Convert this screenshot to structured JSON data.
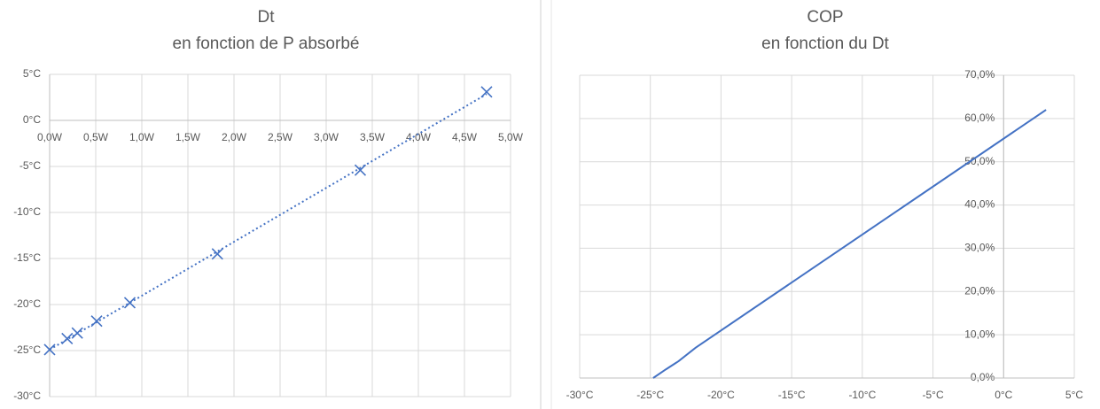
{
  "chart_data": [
    {
      "type": "scatter",
      "title": "Dt",
      "subtitle": "en fonction de P absorbé",
      "x": [
        0,
        0.19,
        0.3,
        0.51,
        0.87,
        1.82,
        3.37,
        4.74
      ],
      "values": [
        -24.9,
        -23.7,
        -23.1,
        -21.8,
        -19.8,
        -14.5,
        -5.4,
        3.1
      ],
      "color": "#4472c4",
      "marker": "x",
      "trendline": "linear",
      "xlim": [
        0,
        5
      ],
      "ylim": [
        -30,
        5
      ],
      "xticks": [
        {
          "value": 0,
          "label": "0,0W"
        },
        {
          "value": 0.5,
          "label": "0,5W"
        },
        {
          "value": 1,
          "label": "1,0W"
        },
        {
          "value": 1.5,
          "label": "1,5W"
        },
        {
          "value": 2,
          "label": "2,0W"
        },
        {
          "value": 2.5,
          "label": "2,5W"
        },
        {
          "value": 3,
          "label": "3,0W"
        },
        {
          "value": 3.5,
          "label": "3,5W"
        },
        {
          "value": 4,
          "label": "4,0W"
        },
        {
          "value": 4.5,
          "label": "4,5W"
        },
        {
          "value": 5,
          "label": "5,0W"
        }
      ],
      "yticks": [
        {
          "value": -30,
          "label": "-30°C"
        },
        {
          "value": -25,
          "label": "-25°C"
        },
        {
          "value": -20,
          "label": "-20°C"
        },
        {
          "value": -15,
          "label": "-15°C"
        },
        {
          "value": -10,
          "label": "-10°C"
        },
        {
          "value": -5,
          "label": "-5°C"
        },
        {
          "value": 0,
          "label": "0°C"
        },
        {
          "value": 5,
          "label": "5°C"
        }
      ],
      "grid": true,
      "x_axis_at": 0
    },
    {
      "type": "line",
      "title": "COP",
      "subtitle": "en fonction du Dt",
      "x": [
        -24.8,
        -23.9,
        -23,
        -21.8,
        3
      ],
      "values": [
        0,
        2,
        3.9,
        7,
        62
      ],
      "color": "#4472c4",
      "xlim": [
        -30,
        5
      ],
      "ylim": [
        0,
        70
      ],
      "xticks": [
        {
          "value": -30,
          "label": "-30°C"
        },
        {
          "value": -25,
          "label": "-25°C"
        },
        {
          "value": -20,
          "label": "-20°C"
        },
        {
          "value": -15,
          "label": "-15°C"
        },
        {
          "value": -10,
          "label": "-10°C"
        },
        {
          "value": -5,
          "label": "-5°C"
        },
        {
          "value": 0,
          "label": "0°C"
        },
        {
          "value": 5,
          "label": "5°C"
        }
      ],
      "yticks": [
        {
          "value": 0,
          "label": "0,0%"
        },
        {
          "value": 10,
          "label": "10,0%"
        },
        {
          "value": 20,
          "label": "20,0%"
        },
        {
          "value": 30,
          "label": "30,0%"
        },
        {
          "value": 40,
          "label": "40,0%"
        },
        {
          "value": 50,
          "label": "50,0%"
        },
        {
          "value": 60,
          "label": "60,0%"
        },
        {
          "value": 70,
          "label": "70,0%"
        }
      ],
      "grid": true,
      "y_axis_at": 0
    }
  ]
}
